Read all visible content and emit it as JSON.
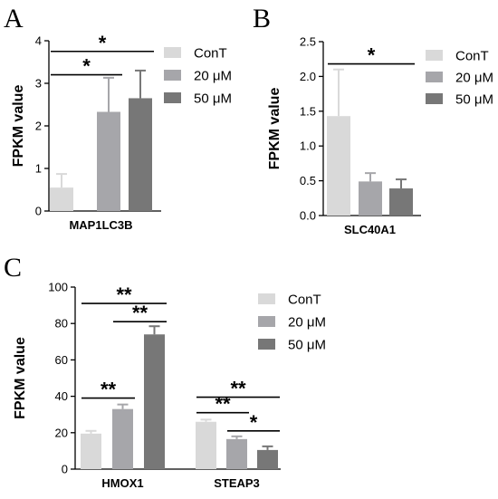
{
  "colors": {
    "ConT": "#d9d9d9",
    "20 μM": "#a6a6aa",
    "50 μM": "#777777"
  },
  "chart_data": [
    {
      "panel": "A",
      "type": "bar",
      "ylabel": "FPKM value",
      "ylim": [
        0,
        4
      ],
      "yticks": [
        "0",
        "1",
        "2",
        "3",
        "4"
      ],
      "categories": [
        "MAP1LC3B"
      ],
      "legend": [
        "ConT",
        "20 μM",
        "50 μM"
      ],
      "series": [
        {
          "name": "ConT",
          "values": [
            0.55
          ],
          "errors": [
            0.32
          ]
        },
        {
          "name": "20 μM",
          "values": [
            2.33
          ],
          "errors": [
            0.8
          ]
        },
        {
          "name": "50 μM",
          "values": [
            2.65
          ],
          "errors": [
            0.65
          ]
        }
      ],
      "significance": [
        {
          "category": "MAP1LC3B",
          "from": 0,
          "to": 1,
          "label": "*",
          "level": 3.2
        },
        {
          "category": "MAP1LC3B",
          "from": 0,
          "to": 2,
          "label": "*",
          "level": 3.75
        }
      ]
    },
    {
      "panel": "B",
      "type": "bar",
      "ylabel": "FPKM value",
      "ylim": [
        0,
        2.5
      ],
      "yticks": [
        "0.0",
        "0.5",
        "1.0",
        "1.5",
        "2.0",
        "2.5"
      ],
      "categories": [
        "SLC40A1"
      ],
      "legend": [
        "ConT",
        "20 μM",
        "50 μM"
      ],
      "series": [
        {
          "name": "ConT",
          "values": [
            1.43
          ],
          "errors": [
            0.67
          ]
        },
        {
          "name": "20 μM",
          "values": [
            0.49
          ],
          "errors": [
            0.12
          ]
        },
        {
          "name": "50 μM",
          "values": [
            0.39
          ],
          "errors": [
            0.13
          ]
        }
      ],
      "significance": [
        {
          "category": "SLC40A1",
          "from": 0,
          "to": 2,
          "label": "*",
          "level": 2.18
        }
      ]
    },
    {
      "panel": "C",
      "type": "bar",
      "ylabel": "FPKM value",
      "ylim": [
        0,
        100
      ],
      "yticks": [
        "0",
        "20",
        "40",
        "60",
        "80",
        "100"
      ],
      "categories": [
        "HMOX1",
        "STEAP3"
      ],
      "legend": [
        "ConT",
        "20 μM",
        "50 μM"
      ],
      "series": [
        {
          "name": "ConT",
          "values": [
            19.5,
            26
          ],
          "errors": [
            1.5,
            1.2
          ]
        },
        {
          "name": "20 μM",
          "values": [
            33,
            16.5
          ],
          "errors": [
            2.5,
            1.5
          ]
        },
        {
          "name": "50 μM",
          "values": [
            74,
            10.5
          ],
          "errors": [
            4.5,
            2
          ]
        }
      ],
      "significance": [
        {
          "category": "HMOX1",
          "from": 0,
          "to": 1,
          "label": "**",
          "level": 39
        },
        {
          "category": "HMOX1",
          "from": 1,
          "to": 2,
          "label": "**",
          "level": 81
        },
        {
          "category": "HMOX1",
          "from": 0,
          "to": 2,
          "label": "**",
          "level": 91
        },
        {
          "category": "STEAP3",
          "from": 1,
          "to": 2,
          "label": "*",
          "level": 21
        },
        {
          "category": "STEAP3",
          "from": 0,
          "to": 1,
          "label": "**",
          "level": 31
        },
        {
          "category": "STEAP3",
          "from": 0,
          "to": 2,
          "label": "**",
          "level": 39.5
        }
      ]
    }
  ]
}
